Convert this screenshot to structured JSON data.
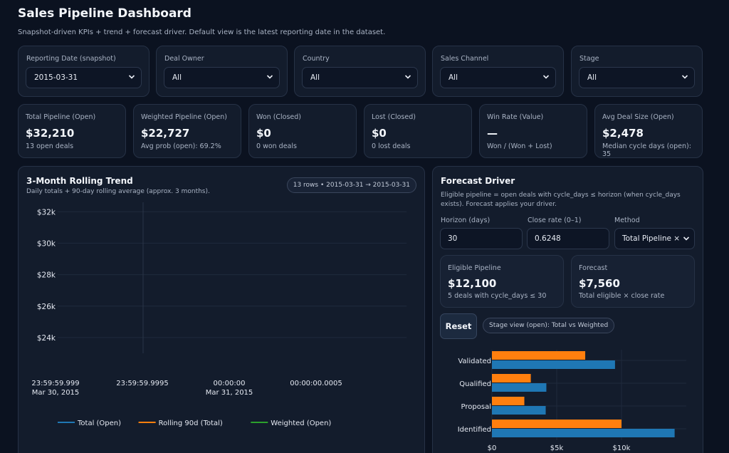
{
  "page": {
    "title": "Sales Pipeline Dashboard",
    "subtitle": "Snapshot-driven KPIs + trend + forecast driver. Default view is the latest reporting date in the dataset."
  },
  "filters": [
    {
      "label": "Reporting Date (snapshot)",
      "value": "2015-03-31"
    },
    {
      "label": "Deal Owner",
      "value": "All"
    },
    {
      "label": "Country",
      "value": "All"
    },
    {
      "label": "Sales Channel",
      "value": "All"
    },
    {
      "label": "Stage",
      "value": "All"
    }
  ],
  "kpis": [
    {
      "label": "Total Pipeline (Open)",
      "value": "$32,210",
      "sub": "13 open deals"
    },
    {
      "label": "Weighted Pipeline (Open)",
      "value": "$22,727",
      "sub": "Avg prob (open): 69.2%"
    },
    {
      "label": "Won (Closed)",
      "value": "$0",
      "sub": "0 won deals"
    },
    {
      "label": "Lost (Closed)",
      "value": "$0",
      "sub": "0 lost deals"
    },
    {
      "label": "Win Rate (Value)",
      "value": "—",
      "sub": "Won / (Won + Lost)"
    },
    {
      "label": "Avg Deal Size (Open)",
      "value": "$2,478",
      "sub": "Median cycle days (open): 35"
    }
  ],
  "trend": {
    "title": "3-Month Rolling Trend",
    "subtitle": "Daily totals + 90-day rolling average (approx. 3 months).",
    "badge": "13 rows • 2015-03-31 → 2015-03-31"
  },
  "forecast": {
    "title": "Forecast Driver",
    "description": "Eligible pipeline = open deals with cycle_days ≤ horizon (when cycle_days exists). Forecast applies your driver.",
    "horizon_label": "Horizon (days)",
    "horizon_value": "30",
    "close_rate_label": "Close rate (0–1)",
    "close_rate_value": "0.6248",
    "method_label": "Method",
    "method_value": "Total Pipeline × C",
    "eligible": {
      "label": "Eligible Pipeline",
      "value": "$12,100",
      "sub": "5 deals with cycle_days ≤ 30"
    },
    "forecast_card": {
      "label": "Forecast",
      "value": "$7,560",
      "sub": "Total eligible × close rate"
    },
    "reset_label": "Reset",
    "stage_view_label": "Stage view (open): Total vs Weighted"
  },
  "chart_data": [
    {
      "type": "line",
      "ylim": [
        23000,
        32600
      ],
      "y_ticks": [
        "$32k",
        "$30k",
        "$28k",
        "$26k",
        "$24k"
      ],
      "y_tick_values": [
        32000,
        30000,
        28000,
        26000,
        24000
      ],
      "x_ticks": [
        {
          "line1": "23:59:59.999",
          "line2": "Mar 30, 2015"
        },
        {
          "line1": "23:59:59.9995",
          "line2": ""
        },
        {
          "line1": "00:00:00",
          "line2": "Mar 31, 2015"
        },
        {
          "line1": "00:00:00.0005",
          "line2": ""
        }
      ],
      "series": [
        {
          "name": "Total (Open)",
          "color": "#1f77b4",
          "values": []
        },
        {
          "name": "Rolling 90d (Total)",
          "color": "#ff7f0e",
          "values": []
        },
        {
          "name": "Weighted (Open)",
          "color": "#2ca02c",
          "values": []
        }
      ]
    },
    {
      "type": "bar",
      "orientation": "horizontal",
      "categories": [
        "Validated",
        "Qualified",
        "Proposal",
        "Identified"
      ],
      "series": [
        {
          "name": "Weighted",
          "color": "#ff7f0e",
          "values": [
            7200,
            3000,
            2500,
            10000
          ]
        },
        {
          "name": "Total",
          "color": "#1f77b4",
          "values": [
            9500,
            4200,
            4150,
            14100
          ]
        }
      ],
      "x_ticks": [
        "$0",
        "$5k",
        "$10k"
      ],
      "x_tick_values": [
        0,
        5000,
        10000
      ],
      "xlim": [
        0,
        15000
      ]
    }
  ]
}
